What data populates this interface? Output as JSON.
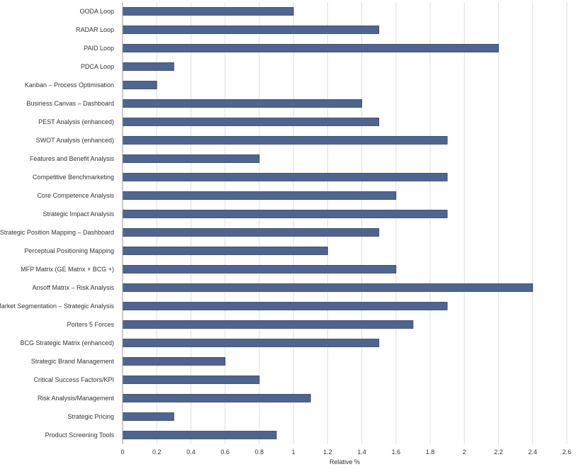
{
  "chart_data": {
    "type": "bar",
    "orientation": "horizontal",
    "categories": [
      "OODA Loop",
      "RADAR Loop",
      "PAID Loop",
      "PDCA Loop",
      "Kanban – Process Optimisation",
      "Business Canvas – Dashboard",
      "PEST Analysis (enhanced)",
      "SWOT Analysis (enhanced)",
      "Features and Benefit Analysis",
      "Competitive Benchmarketing",
      "Core Competence Analysis",
      "Strategic Impact Analysis",
      "Strategic Position Mapping – Dashboard",
      "Perceptual Positioning Mapping",
      "MFP Matrix (GE Matrix + BCG +)",
      "Ansoff Matrix – Risk Analysis",
      "Market Segmentation – Strategic Analysis",
      "Porters 5 Forces",
      "BCG Strategic Matrix (enhanced)",
      "Strategic Brand Management",
      "Critical Success Factors/KPI",
      "Risk Analysis/Management",
      "Strategic Pricing",
      "Product Screening Tools"
    ],
    "values": [
      1.0,
      1.5,
      2.2,
      0.3,
      0.2,
      1.4,
      1.5,
      1.9,
      0.8,
      1.9,
      1.6,
      1.9,
      1.5,
      1.2,
      1.6,
      2.4,
      1.9,
      1.7,
      1.5,
      0.6,
      0.8,
      1.1,
      0.3,
      0.9
    ],
    "xlabel": "Relative %",
    "ylabel": "",
    "title": "",
    "xlim": [
      0,
      2.6
    ],
    "xticks": [
      "0",
      "0.2",
      "0.4",
      "0.6",
      "0.8",
      "1",
      "1.2",
      "1.4",
      "1.6",
      "1.8",
      "2",
      "2.2",
      "2.4",
      "2.6"
    ],
    "grid": true,
    "bar_color": "#4f6590"
  }
}
